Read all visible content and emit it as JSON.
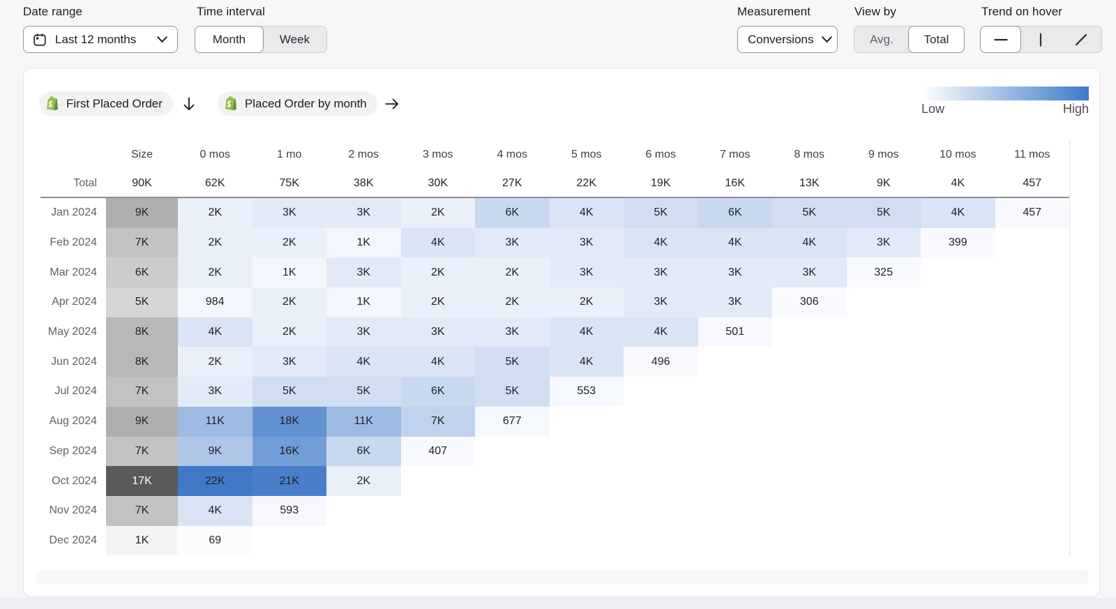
{
  "toolbar": {
    "date_range": {
      "label": "Date range",
      "value": "Last 12 months"
    },
    "time_interval": {
      "label": "Time interval",
      "options": [
        "Month",
        "Week"
      ],
      "selected": "Month"
    },
    "measurement": {
      "label": "Measurement",
      "value": "Conversions"
    },
    "view_by": {
      "label": "View by",
      "options": [
        "Avg.",
        "Total"
      ],
      "selected": "Total"
    },
    "trend_on_hover": {
      "label": "Trend on hover",
      "options": [
        "flat-line",
        "vertical-line",
        "diagonal-line"
      ],
      "selected": "flat-line"
    }
  },
  "card": {
    "cohort_event": "First Placed Order",
    "return_event": "Placed Order by month",
    "legend": {
      "low": "Low",
      "high": "High"
    }
  },
  "chart_data": {
    "type": "heatmap",
    "title": "Cohort conversions heatmap",
    "columns": [
      "Size",
      "0 mos",
      "1 mo",
      "2 mos",
      "3 mos",
      "4 mos",
      "5 mos",
      "6 mos",
      "7 mos",
      "8 mos",
      "9 mos",
      "10 mos",
      "11 mos"
    ],
    "total_row": {
      "label": "Total",
      "values": [
        "90K",
        "62K",
        "75K",
        "38K",
        "30K",
        "27K",
        "22K",
        "19K",
        "16K",
        "13K",
        "9K",
        "4K",
        "457"
      ]
    },
    "rows": [
      {
        "label": "Jan 2024",
        "size": "9K",
        "values": [
          "2K",
          "3K",
          "3K",
          "2K",
          "6K",
          "4K",
          "5K",
          "6K",
          "5K",
          "5K",
          "4K",
          "457"
        ]
      },
      {
        "label": "Feb 2024",
        "size": "7K",
        "values": [
          "2K",
          "2K",
          "1K",
          "4K",
          "3K",
          "3K",
          "4K",
          "4K",
          "4K",
          "3K",
          "399"
        ]
      },
      {
        "label": "Mar 2024",
        "size": "6K",
        "values": [
          "2K",
          "1K",
          "3K",
          "2K",
          "2K",
          "3K",
          "3K",
          "3K",
          "3K",
          "325"
        ]
      },
      {
        "label": "Apr 2024",
        "size": "5K",
        "values": [
          "984",
          "2K",
          "1K",
          "2K",
          "2K",
          "2K",
          "3K",
          "3K",
          "306"
        ]
      },
      {
        "label": "May 2024",
        "size": "8K",
        "values": [
          "4K",
          "2K",
          "3K",
          "3K",
          "3K",
          "4K",
          "4K",
          "501"
        ]
      },
      {
        "label": "Jun 2024",
        "size": "8K",
        "values": [
          "2K",
          "3K",
          "4K",
          "4K",
          "5K",
          "4K",
          "496"
        ]
      },
      {
        "label": "Jul 2024",
        "size": "7K",
        "values": [
          "3K",
          "5K",
          "5K",
          "6K",
          "5K",
          "553"
        ]
      },
      {
        "label": "Aug 2024",
        "size": "9K",
        "values": [
          "11K",
          "18K",
          "11K",
          "7K",
          "677"
        ]
      },
      {
        "label": "Sep 2024",
        "size": "7K",
        "values": [
          "9K",
          "16K",
          "6K",
          "407"
        ]
      },
      {
        "label": "Oct 2024",
        "size": "17K",
        "values": [
          "22K",
          "21K",
          "2K"
        ]
      },
      {
        "label": "Nov 2024",
        "size": "7K",
        "values": [
          "4K",
          "593"
        ]
      },
      {
        "label": "Dec 2024",
        "size": "1K",
        "values": [
          "69"
        ]
      }
    ],
    "heat": {
      "value_low_color": "#fbfcfe",
      "value_high_color": "#4079c8",
      "value_max": 22000,
      "size_low_color": "#f4f4f4",
      "size_high_color": "#5a5a5c",
      "size_min": 1000,
      "size_max": 17000,
      "size_gamma": 1.15
    },
    "legend_gradient": [
      "#ffffff",
      "#3d7bca"
    ]
  }
}
